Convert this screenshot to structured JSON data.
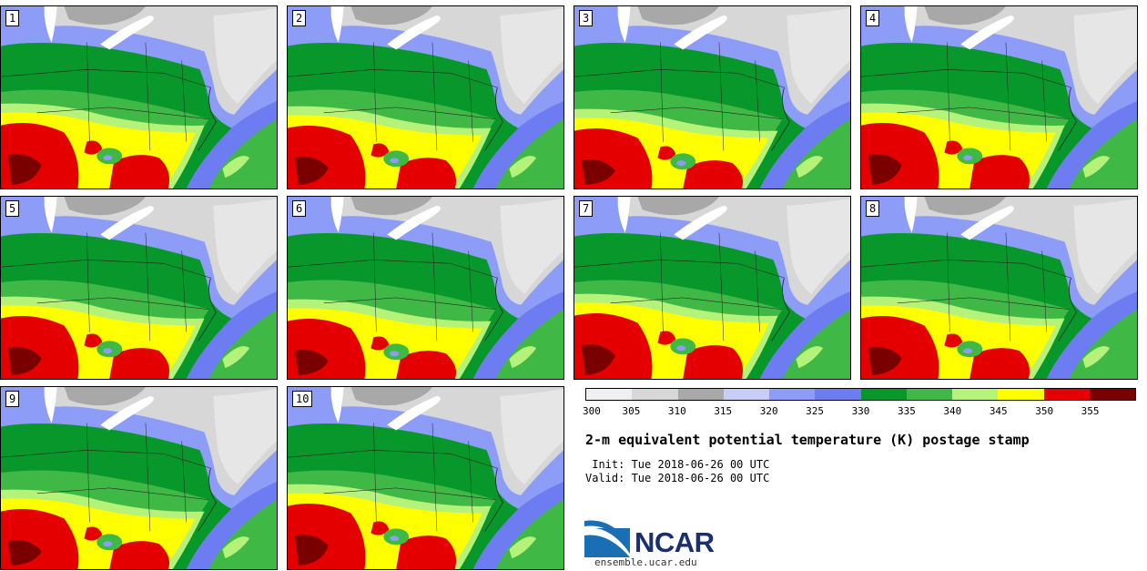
{
  "title": "2-m equivalent potential temperature (K) postage stamp",
  "init_line": " Init: Tue 2018-06-26 00 UTC",
  "valid_line": "Valid: Tue 2018-06-26 00 UTC",
  "website": "ensemble.ucar.edu",
  "logo_text": "NCAR",
  "panels": [
    "1",
    "2",
    "3",
    "4",
    "5",
    "6",
    "7",
    "8",
    "9",
    "10"
  ],
  "colorbar": {
    "ticks": [
      "300",
      "305",
      "310",
      "315",
      "320",
      "325",
      "330",
      "335",
      "340",
      "345",
      "350",
      "355"
    ],
    "colors": [
      "#f0f0f0",
      "#d7d7d7",
      "#a8a8a8",
      "#c5cdf8",
      "#8c9cf7",
      "#6d7cf0",
      "#08972a",
      "#3fb846",
      "#b5f27a",
      "#ffff00",
      "#e40000",
      "#7a0000"
    ]
  },
  "map_colors": {
    "lake": "#ffffff",
    "grey_dark": "#a8a8a8",
    "grey_light": "#d7d7d7",
    "blue_light": "#8c9cf7",
    "blue_dark": "#6d7cf0",
    "green_dark": "#08972a",
    "green_mid": "#3fb846",
    "green_light": "#b5f27a",
    "yellow": "#ffff00",
    "red": "#e40000",
    "dark_red": "#7a0000"
  }
}
